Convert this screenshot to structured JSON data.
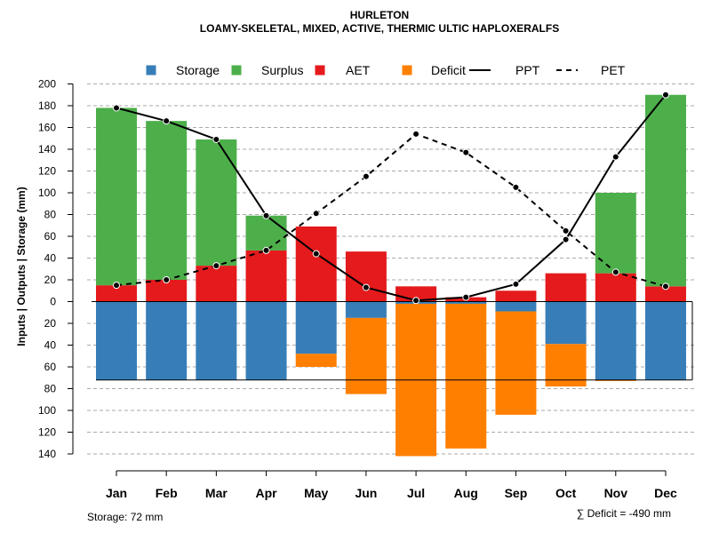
{
  "chart_data": {
    "type": "bar",
    "title": "HURLETON",
    "subtitle": "LOAMY-SKELETAL, MIXED, ACTIVE, THERMIC ULTIC HAPLOXERALFS",
    "ylabel": "Inputs | Outputs | Storage    (mm)",
    "ylim": [
      -140,
      200
    ],
    "ytick_values": [
      200,
      180,
      160,
      140,
      120,
      100,
      80,
      60,
      40,
      20,
      0,
      -20,
      -40,
      -60,
      -80,
      -100,
      -120,
      -140
    ],
    "ytick_labels": [
      "200",
      "180",
      "160",
      "140",
      "120",
      "100",
      "80",
      "60",
      "40",
      "20",
      "0",
      "20",
      "40",
      "60",
      "80",
      "100",
      "120",
      "140"
    ],
    "categories": [
      "Jan",
      "Feb",
      "Mar",
      "Apr",
      "May",
      "Jun",
      "Jul",
      "Aug",
      "Sep",
      "Oct",
      "Nov",
      "Dec"
    ],
    "series": [
      {
        "name": "AET",
        "color": "#E41A1C",
        "values": [
          15,
          20,
          33,
          47,
          69,
          46,
          14,
          4,
          10,
          26,
          26,
          14
        ]
      },
      {
        "name": "Surplus",
        "color": "#4DAF4A",
        "values": [
          163,
          146,
          116,
          32,
          0,
          0,
          0,
          0,
          0,
          0,
          74,
          176
        ]
      },
      {
        "name": "Storage",
        "color": "#377EB8",
        "values": [
          72,
          72,
          72,
          72,
          48,
          15,
          2,
          2,
          9,
          39,
          72,
          72
        ]
      },
      {
        "name": "Deficit",
        "color": "#FF7F00",
        "values": [
          0,
          0,
          0,
          0,
          12,
          70,
          140,
          133,
          95,
          39,
          1,
          0
        ]
      },
      {
        "name": "PPT",
        "color": "#000000",
        "style": "solid",
        "values": [
          178,
          166,
          149,
          79,
          44,
          13,
          1,
          4,
          16,
          57,
          133,
          190
        ]
      },
      {
        "name": "PET",
        "color": "#000000",
        "style": "dashed",
        "values": [
          15,
          20,
          33,
          47,
          81,
          115,
          154,
          137,
          105,
          65,
          27,
          14
        ]
      }
    ],
    "legend": {
      "position": "top",
      "entries": [
        {
          "label": "Storage",
          "symbol": "square",
          "color": "#377EB8"
        },
        {
          "label": "Surplus",
          "symbol": "square",
          "color": "#4DAF4A"
        },
        {
          "label": "AET",
          "symbol": "square",
          "color": "#E41A1C"
        },
        {
          "label": "Deficit",
          "symbol": "square",
          "color": "#FF7F00"
        },
        {
          "label": "PPT",
          "symbol": "solid-line",
          "color": "#000000"
        },
        {
          "label": "PET",
          "symbol": "dashed-line",
          "color": "#000000"
        }
      ]
    },
    "storage_capacity": 72,
    "grid": true,
    "footer_left": "Storage: 72 mm",
    "footer_right": "∑ Deficit = -490 mm"
  }
}
